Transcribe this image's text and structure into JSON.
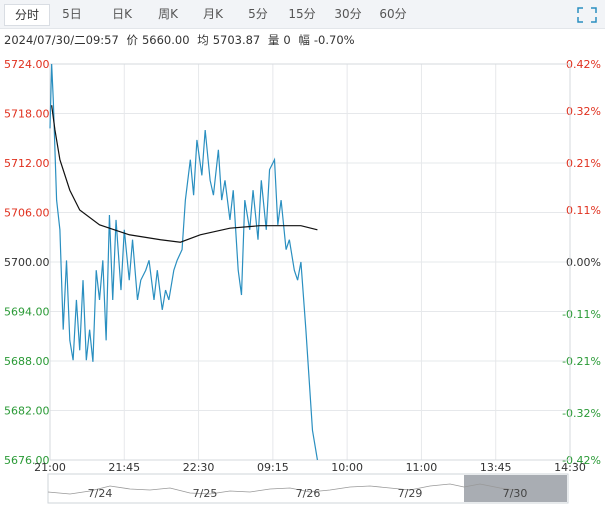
{
  "tabs": [
    "分时",
    "5日",
    "日K",
    "周K",
    "月K",
    "5分",
    "15分",
    "30分",
    "60分"
  ],
  "info": {
    "time": "2024/07/30/二09:57",
    "price_label": "价",
    "price": "5660.00",
    "avg_label": "均",
    "avg": "5703.87",
    "vol_label": "量",
    "vol": "0",
    "change_label": "幅",
    "change": "-0.70%"
  },
  "chart_data": {
    "type": "line",
    "xlim": [
      0,
      315
    ],
    "xticks": [
      {
        "value": 0,
        "label": "21:00"
      },
      {
        "value": 45,
        "label": "21:45"
      },
      {
        "value": 90,
        "label": "22:30"
      },
      {
        "value": 135,
        "label": "09:15"
      },
      {
        "value": 180,
        "label": "10:00"
      },
      {
        "value": 225,
        "label": "11:00"
      },
      {
        "value": 270,
        "label": "13:45"
      },
      {
        "value": 315,
        "label": "14:30"
      }
    ],
    "ylim": [
      5676,
      5724
    ],
    "yticks": [
      {
        "value": 5724,
        "label": "5724.00"
      },
      {
        "value": 5718,
        "label": "5718.00"
      },
      {
        "value": 5712,
        "label": "5712.00"
      },
      {
        "value": 5706,
        "label": "5706.00"
      },
      {
        "value": 5700,
        "label": "5700.00"
      },
      {
        "value": 5694,
        "label": "5694.00"
      },
      {
        "value": 5688,
        "label": "5688.00"
      },
      {
        "value": 5682,
        "label": "5682.00"
      },
      {
        "value": 5676,
        "label": "5676.00"
      }
    ],
    "y2lim": [
      -0.42,
      0.42
    ],
    "y2ticks": [
      {
        "value": 0.42,
        "label": "0.42%"
      },
      {
        "value": 0.32,
        "label": "0.32%"
      },
      {
        "value": 0.21,
        "label": "0.21%"
      },
      {
        "value": 0.11,
        "label": "0.11%"
      },
      {
        "value": 0,
        "label": "0.00%"
      },
      {
        "value": -0.11,
        "label": "-0.11%"
      },
      {
        "value": -0.21,
        "label": "-0.21%"
      },
      {
        "value": -0.32,
        "label": "-0.32%"
      },
      {
        "value": -0.42,
        "label": "-0.42%"
      }
    ],
    "grid": true,
    "up_color": "#e0301e",
    "down_color": "#2a9a36",
    "series": [
      {
        "name": "价",
        "color": "#2a8fc0",
        "x": [
          0,
          1,
          2,
          4,
          6,
          8,
          10,
          12,
          14,
          16,
          18,
          20,
          22,
          24,
          26,
          28,
          30,
          32,
          34,
          36,
          38,
          40,
          43,
          45,
          48,
          50,
          53,
          55,
          58,
          60,
          63,
          65,
          68,
          70,
          72,
          75,
          77,
          80,
          82,
          85,
          87,
          89,
          92,
          94,
          97,
          99,
          102,
          104,
          106,
          109,
          111,
          114,
          116,
          118,
          121,
          123,
          126,
          128,
          131,
          133,
          136,
          138,
          140,
          143,
          145,
          148,
          150,
          152,
          155,
          157,
          159,
          162
        ],
        "values": [
          5716.2,
          5724,
          5719.6,
          5707.5,
          5703.9,
          5691.8,
          5700.2,
          5690.5,
          5688.1,
          5695.4,
          5689.3,
          5697.8,
          5688.1,
          5691.8,
          5687.9,
          5699,
          5695.4,
          5700.2,
          5690.5,
          5705.7,
          5695.4,
          5705.1,
          5696.6,
          5703.9,
          5697.8,
          5702.7,
          5695.4,
          5697.8,
          5699,
          5700.2,
          5695.4,
          5699,
          5694.2,
          5696.6,
          5695.4,
          5699,
          5700.2,
          5701.5,
          5707.5,
          5712.4,
          5708.1,
          5714.8,
          5710.5,
          5716,
          5709.9,
          5708.1,
          5713.6,
          5707.5,
          5709.9,
          5705.1,
          5708.7,
          5699,
          5696,
          5707.5,
          5703.9,
          5708.7,
          5702.7,
          5709.9,
          5703.9,
          5711.2,
          5712.4,
          5704.5,
          5707.5,
          5701.5,
          5702.7,
          5699,
          5697.8,
          5700,
          5691.8,
          5685.7,
          5679.6,
          5676
        ]
      },
      {
        "name": "均",
        "color": "#111111",
        "x": [
          1,
          3,
          6,
          12,
          18,
          30,
          48,
          67,
          79,
          91,
          109,
          127,
          152,
          162
        ],
        "values": [
          5719,
          5716,
          5712.4,
          5708.7,
          5706.3,
          5704.5,
          5703.3,
          5702.7,
          5702.4,
          5703.3,
          5704.1,
          5704.4,
          5704.4,
          5703.9
        ]
      }
    ],
    "navigator": {
      "labels": [
        "7/24",
        "7/25",
        "7/26",
        "7/29",
        "7/30"
      ]
    }
  }
}
